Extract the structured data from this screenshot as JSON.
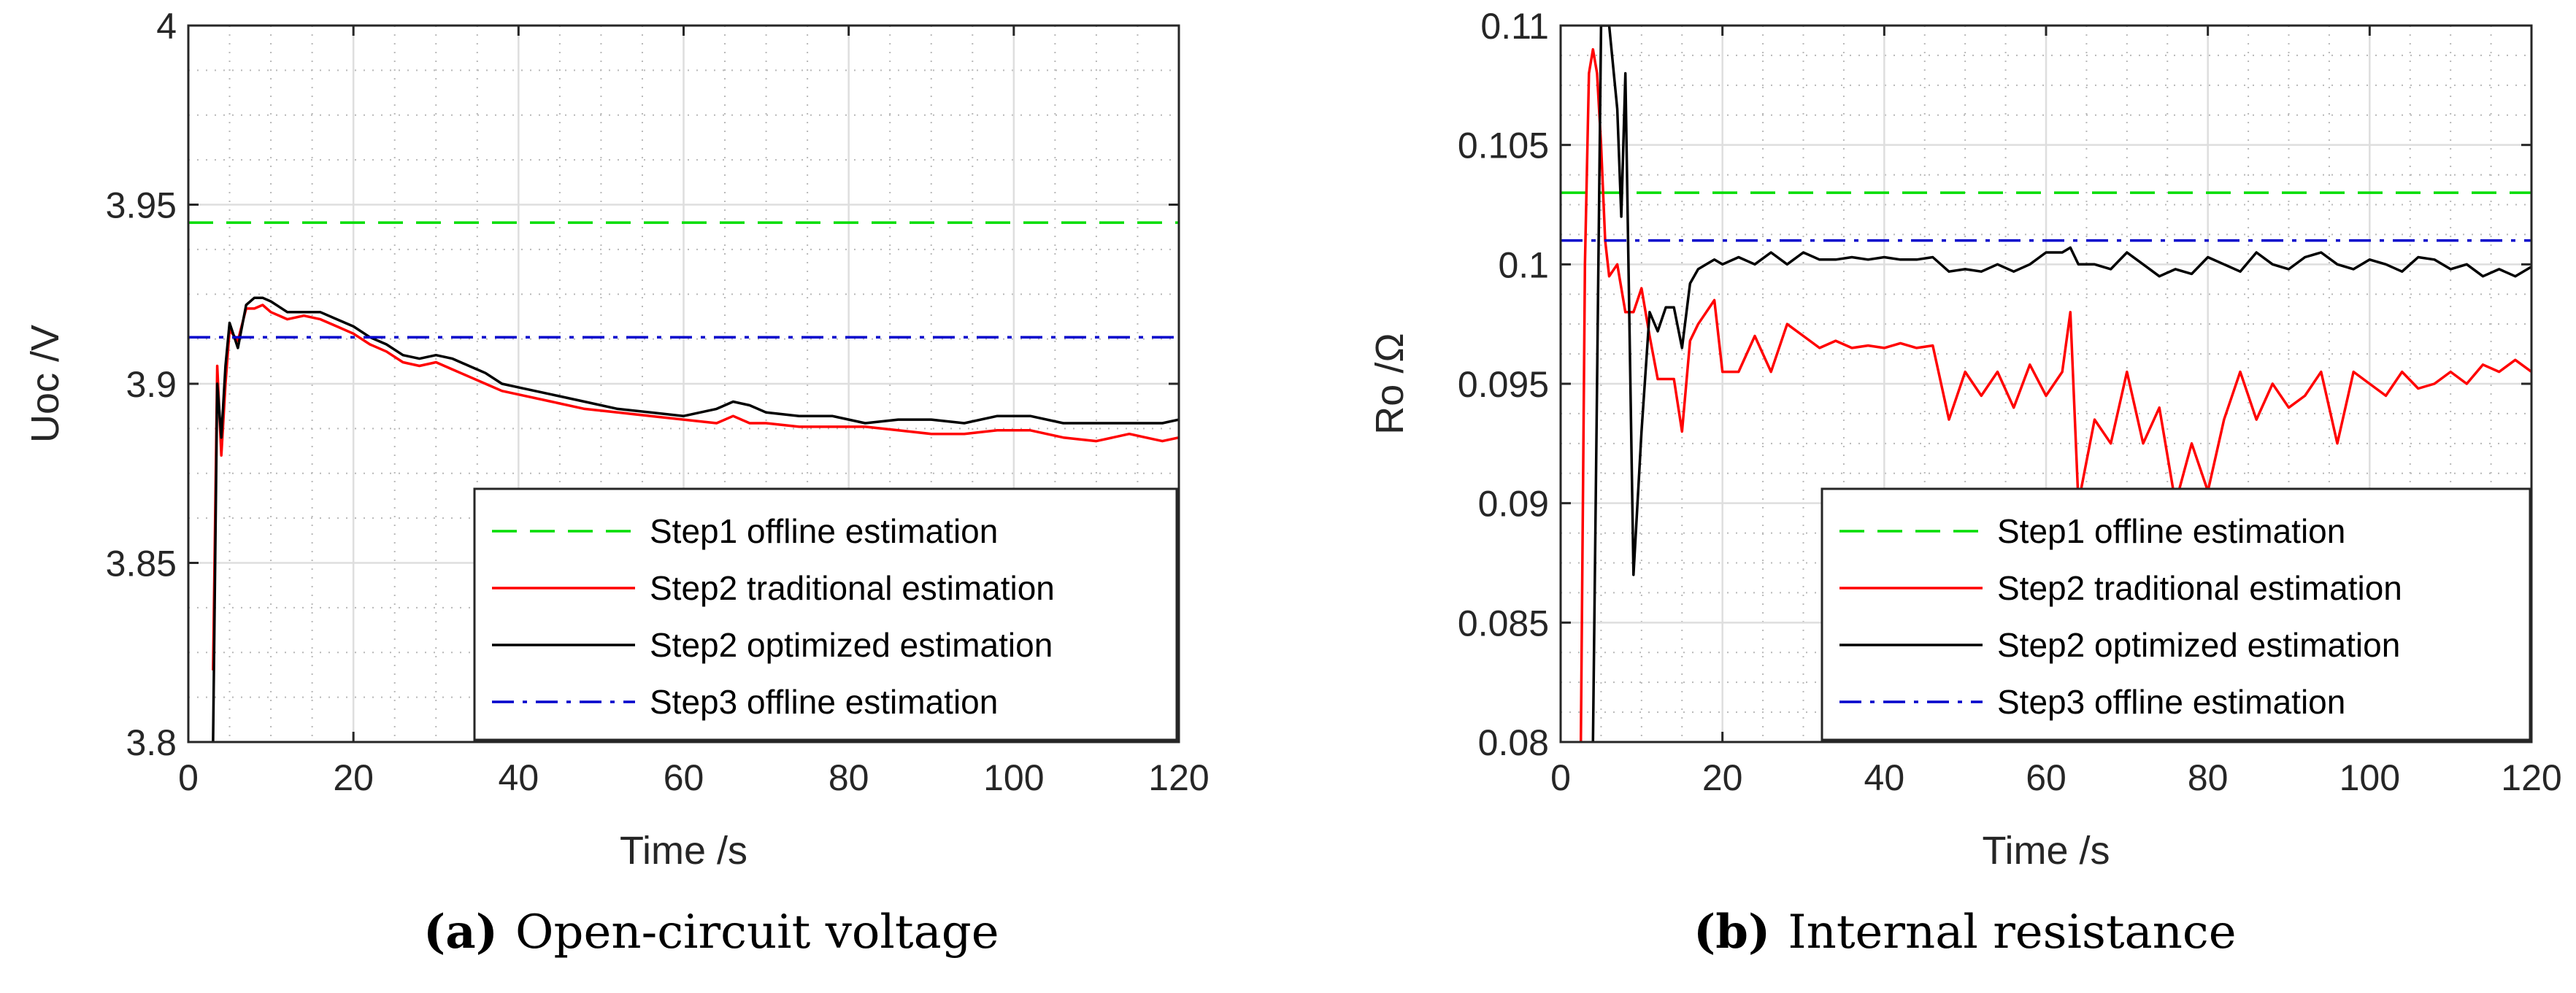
{
  "chart_data": [
    {
      "type": "line",
      "panel": "a",
      "caption_label": "(a)",
      "caption_text": "Open-circuit voltage",
      "xlabel": "Time /s",
      "ylabel": "Uoc /V",
      "xlim": [
        0,
        120
      ],
      "ylim": [
        3.8,
        4.0
      ],
      "xticks": [
        0,
        20,
        40,
        60,
        80,
        100,
        120
      ],
      "xtick_labels": [
        "0",
        "20",
        "40",
        "60",
        "80",
        "100",
        "120"
      ],
      "yticks": [
        3.8,
        3.85,
        3.9,
        3.95,
        4.0
      ],
      "ytick_labels": [
        "3.8",
        "3.85",
        "3.9",
        "3.95",
        "4"
      ],
      "grid": true,
      "legend_position": "bottom-right",
      "series": [
        {
          "name": "Step1 offline estimation",
          "color": "#00dd00",
          "style": "dashed",
          "x": [
            0,
            120
          ],
          "y": [
            3.945,
            3.945
          ]
        },
        {
          "name": "Step2 traditional estimation",
          "color": "#ff0000",
          "style": "solid",
          "x": [
            3,
            3.5,
            4,
            4.5,
            5,
            6,
            7,
            8,
            9,
            10,
            12,
            14,
            16,
            18,
            20,
            22,
            24,
            26,
            28,
            30,
            32,
            34,
            36,
            38,
            40,
            44,
            48,
            52,
            56,
            60,
            64,
            66,
            68,
            70,
            74,
            78,
            82,
            86,
            90,
            94,
            98,
            102,
            106,
            110,
            114,
            116,
            118,
            120
          ],
          "y": [
            3.82,
            3.905,
            3.88,
            3.9,
            3.915,
            3.912,
            3.921,
            3.921,
            3.922,
            3.92,
            3.918,
            3.919,
            3.918,
            3.916,
            3.914,
            3.911,
            3.909,
            3.906,
            3.905,
            3.906,
            3.904,
            3.902,
            3.9,
            3.898,
            3.897,
            3.895,
            3.893,
            3.892,
            3.891,
            3.89,
            3.889,
            3.891,
            3.889,
            3.889,
            3.888,
            3.888,
            3.888,
            3.887,
            3.886,
            3.886,
            3.887,
            3.887,
            3.885,
            3.884,
            3.886,
            3.885,
            3.884,
            3.885
          ]
        },
        {
          "name": "Step2 optimized estimation",
          "color": "#000000",
          "style": "solid",
          "x": [
            3,
            3.5,
            4,
            4.5,
            5,
            6,
            7,
            8,
            9,
            10,
            12,
            14,
            16,
            18,
            20,
            22,
            24,
            26,
            28,
            30,
            32,
            34,
            36,
            38,
            40,
            44,
            48,
            52,
            56,
            60,
            64,
            66,
            68,
            70,
            74,
            78,
            82,
            86,
            90,
            94,
            98,
            102,
            106,
            110,
            114,
            116,
            118,
            120
          ],
          "y": [
            3.8,
            3.9,
            3.885,
            3.905,
            3.917,
            3.91,
            3.922,
            3.924,
            3.924,
            3.923,
            3.92,
            3.92,
            3.92,
            3.918,
            3.916,
            3.913,
            3.911,
            3.908,
            3.907,
            3.908,
            3.907,
            3.905,
            3.903,
            3.9,
            3.899,
            3.897,
            3.895,
            3.893,
            3.892,
            3.891,
            3.893,
            3.895,
            3.894,
            3.892,
            3.891,
            3.891,
            3.889,
            3.89,
            3.89,
            3.889,
            3.891,
            3.891,
            3.889,
            3.889,
            3.889,
            3.889,
            3.889,
            3.89
          ]
        },
        {
          "name": "Step3 offline estimation",
          "color": "#0000cc",
          "style": "dashdot",
          "x": [
            0,
            120
          ],
          "y": [
            3.913,
            3.913
          ]
        }
      ]
    },
    {
      "type": "line",
      "panel": "b",
      "caption_label": "(b)",
      "caption_text": "Internal resistance",
      "xlabel": "Time /s",
      "ylabel": "Ro /Ω",
      "xlim": [
        0,
        120
      ],
      "ylim": [
        0.08,
        0.11
      ],
      "xticks": [
        0,
        20,
        40,
        60,
        80,
        100,
        120
      ],
      "xtick_labels": [
        "0",
        "20",
        "40",
        "60",
        "80",
        "100",
        "120"
      ],
      "yticks": [
        0.08,
        0.085,
        0.09,
        0.095,
        0.1,
        0.105,
        0.11
      ],
      "ytick_labels": [
        "0.08",
        "0.085",
        "0.09",
        "0.095",
        "0.1",
        "0.105",
        "0.11"
      ],
      "grid": true,
      "legend_position": "bottom-right",
      "series": [
        {
          "name": "Step1 offline estimation",
          "color": "#00dd00",
          "style": "dashed",
          "x": [
            0,
            120
          ],
          "y": [
            0.103,
            0.103
          ]
        },
        {
          "name": "Step2 traditional estimation",
          "color": "#ff0000",
          "style": "solid",
          "x": [
            2.5,
            3,
            3.5,
            4,
            4.5,
            5,
            5.5,
            6,
            7,
            8,
            9,
            10,
            11,
            12,
            13,
            14,
            15,
            16,
            17,
            18,
            19,
            20,
            22,
            24,
            26,
            28,
            30,
            32,
            34,
            36,
            38,
            40,
            42,
            44,
            46,
            48,
            50,
            52,
            54,
            56,
            58,
            60,
            62,
            63,
            64,
            66,
            68,
            70,
            72,
            74,
            76,
            78,
            80,
            82,
            84,
            86,
            88,
            90,
            92,
            94,
            96,
            98,
            100,
            102,
            104,
            106,
            108,
            110,
            112,
            114,
            116,
            118,
            120
          ],
          "y": [
            0.08,
            0.1,
            0.108,
            0.109,
            0.108,
            0.105,
            0.101,
            0.0995,
            0.1,
            0.098,
            0.098,
            0.099,
            0.097,
            0.0952,
            0.0952,
            0.0952,
            0.093,
            0.0968,
            0.0975,
            0.098,
            0.0985,
            0.0955,
            0.0955,
            0.097,
            0.0955,
            0.0975,
            0.097,
            0.0965,
            0.0968,
            0.0965,
            0.0966,
            0.0965,
            0.0967,
            0.0965,
            0.0966,
            0.0935,
            0.0955,
            0.0945,
            0.0955,
            0.094,
            0.0958,
            0.0945,
            0.0955,
            0.098,
            0.09,
            0.0935,
            0.0925,
            0.0955,
            0.0925,
            0.094,
            0.09,
            0.0925,
            0.0905,
            0.0935,
            0.0955,
            0.0935,
            0.095,
            0.094,
            0.0945,
            0.0955,
            0.0925,
            0.0955,
            0.095,
            0.0945,
            0.0955,
            0.0948,
            0.095,
            0.0955,
            0.095,
            0.0958,
            0.0955,
            0.096,
            0.0955
          ]
        },
        {
          "name": "Step2 optimized estimation",
          "color": "#000000",
          "style": "solid",
          "x": [
            4,
            4.5,
            5,
            6,
            7,
            7.5,
            8,
            9,
            10,
            11,
            12,
            13,
            14,
            15,
            16,
            17,
            18,
            19,
            20,
            22,
            24,
            26,
            28,
            30,
            32,
            34,
            36,
            38,
            40,
            42,
            44,
            46,
            48,
            50,
            52,
            54,
            56,
            58,
            60,
            62,
            63,
            64,
            66,
            68,
            70,
            72,
            74,
            76,
            78,
            80,
            82,
            84,
            86,
            88,
            90,
            92,
            94,
            96,
            98,
            100,
            102,
            104,
            106,
            108,
            110,
            112,
            114,
            116,
            118,
            120
          ],
          "y": [
            0.08,
            0.095,
            0.11,
            0.11,
            0.1065,
            0.102,
            0.108,
            0.087,
            0.093,
            0.098,
            0.0972,
            0.0982,
            0.0982,
            0.0965,
            0.0992,
            0.0998,
            0.1,
            0.1002,
            0.1,
            0.1003,
            0.1,
            0.1005,
            0.1,
            0.1005,
            0.1002,
            0.1002,
            0.1003,
            0.1002,
            0.1003,
            0.1002,
            0.1002,
            0.1003,
            0.0997,
            0.0998,
            0.0997,
            0.1,
            0.0997,
            0.1,
            0.1005,
            0.1005,
            0.1007,
            0.1,
            0.1,
            0.0998,
            0.1005,
            0.1,
            0.0995,
            0.0998,
            0.0996,
            0.1003,
            0.1,
            0.0997,
            0.1005,
            0.1,
            0.0998,
            0.1003,
            0.1005,
            0.1,
            0.0998,
            0.1002,
            0.1,
            0.0997,
            0.1003,
            0.1002,
            0.0998,
            0.1,
            0.0995,
            0.0998,
            0.0995,
            0.0999
          ]
        },
        {
          "name": "Step3 offline estimation",
          "color": "#0000cc",
          "style": "dashdot",
          "x": [
            0,
            120
          ],
          "y": [
            0.101,
            0.101
          ]
        }
      ]
    }
  ]
}
